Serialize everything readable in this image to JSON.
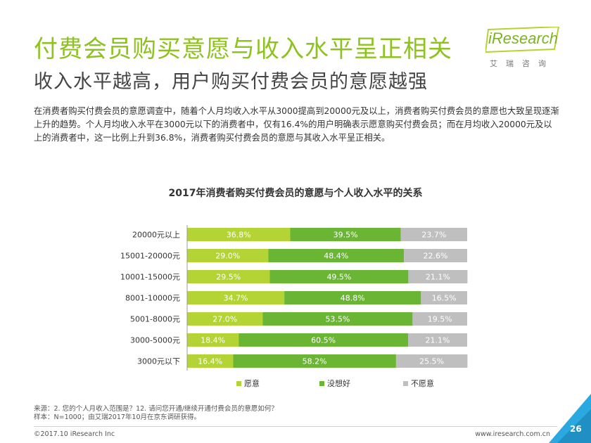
{
  "header": {
    "title": "付费会员购买意愿与收入水平呈正相关",
    "subtitle": "收入水平越高，用户购买付费会员的意愿越强"
  },
  "logo": {
    "text": "iResearch",
    "cn": "艾瑞咨询"
  },
  "body_text": "在消费者购买付费会员的意愿调查中，随着个人月均收入水平从3000提高到20000元及以上，消费者购买付费会员的意愿也大致呈现逐渐上升的趋势。个人月均收入水平在3000元以下的消费者中，仅有16.4%的用户明确表示愿意购买付费会员；而在月均收入20000元及以上的消费者中，这一比例上升到36.8%，消费者购买付费会员的意愿与其收入水平呈正相关。",
  "chart_data": {
    "type": "bar",
    "orientation": "horizontal",
    "stacked": "100%",
    "title": "2017年消费者购买付费会员的意愿与个人收入水平的关系",
    "categories": [
      "20000元以上",
      "15001-20000元",
      "10001-15000元",
      "8001-10000元",
      "5001-8000元",
      "3000-5000元",
      "3000元以下"
    ],
    "series": [
      {
        "name": "愿意",
        "color": "#b4d335",
        "values": [
          36.8,
          29.0,
          29.5,
          34.7,
          27.0,
          18.4,
          16.4
        ]
      },
      {
        "name": "没想好",
        "color": "#6ab534",
        "values": [
          39.5,
          48.4,
          49.5,
          48.8,
          53.5,
          60.5,
          58.2
        ]
      },
      {
        "name": "不愿意",
        "color": "#bfbfbf",
        "values": [
          23.7,
          22.6,
          21.1,
          16.5,
          19.5,
          21.1,
          25.5
        ]
      }
    ],
    "value_format": "{v}%",
    "xlim": [
      0,
      100
    ],
    "legend_position": "bottom",
    "grid": false
  },
  "footer": {
    "source_line1": "来源：2. 您的个人月收入范围是？12. 请问您开通/继续开通付费会员的意愿如何？",
    "source_line2": "样本：N=1000；由艾瑞2017年10月在京东调研获得。",
    "copyright": "©2017.10 iResearch Inc",
    "url": "www.iresearch.com.cn",
    "page_number": "26"
  },
  "colors": {
    "accent": "#8ec31f",
    "corner": "#2aa9e0"
  }
}
